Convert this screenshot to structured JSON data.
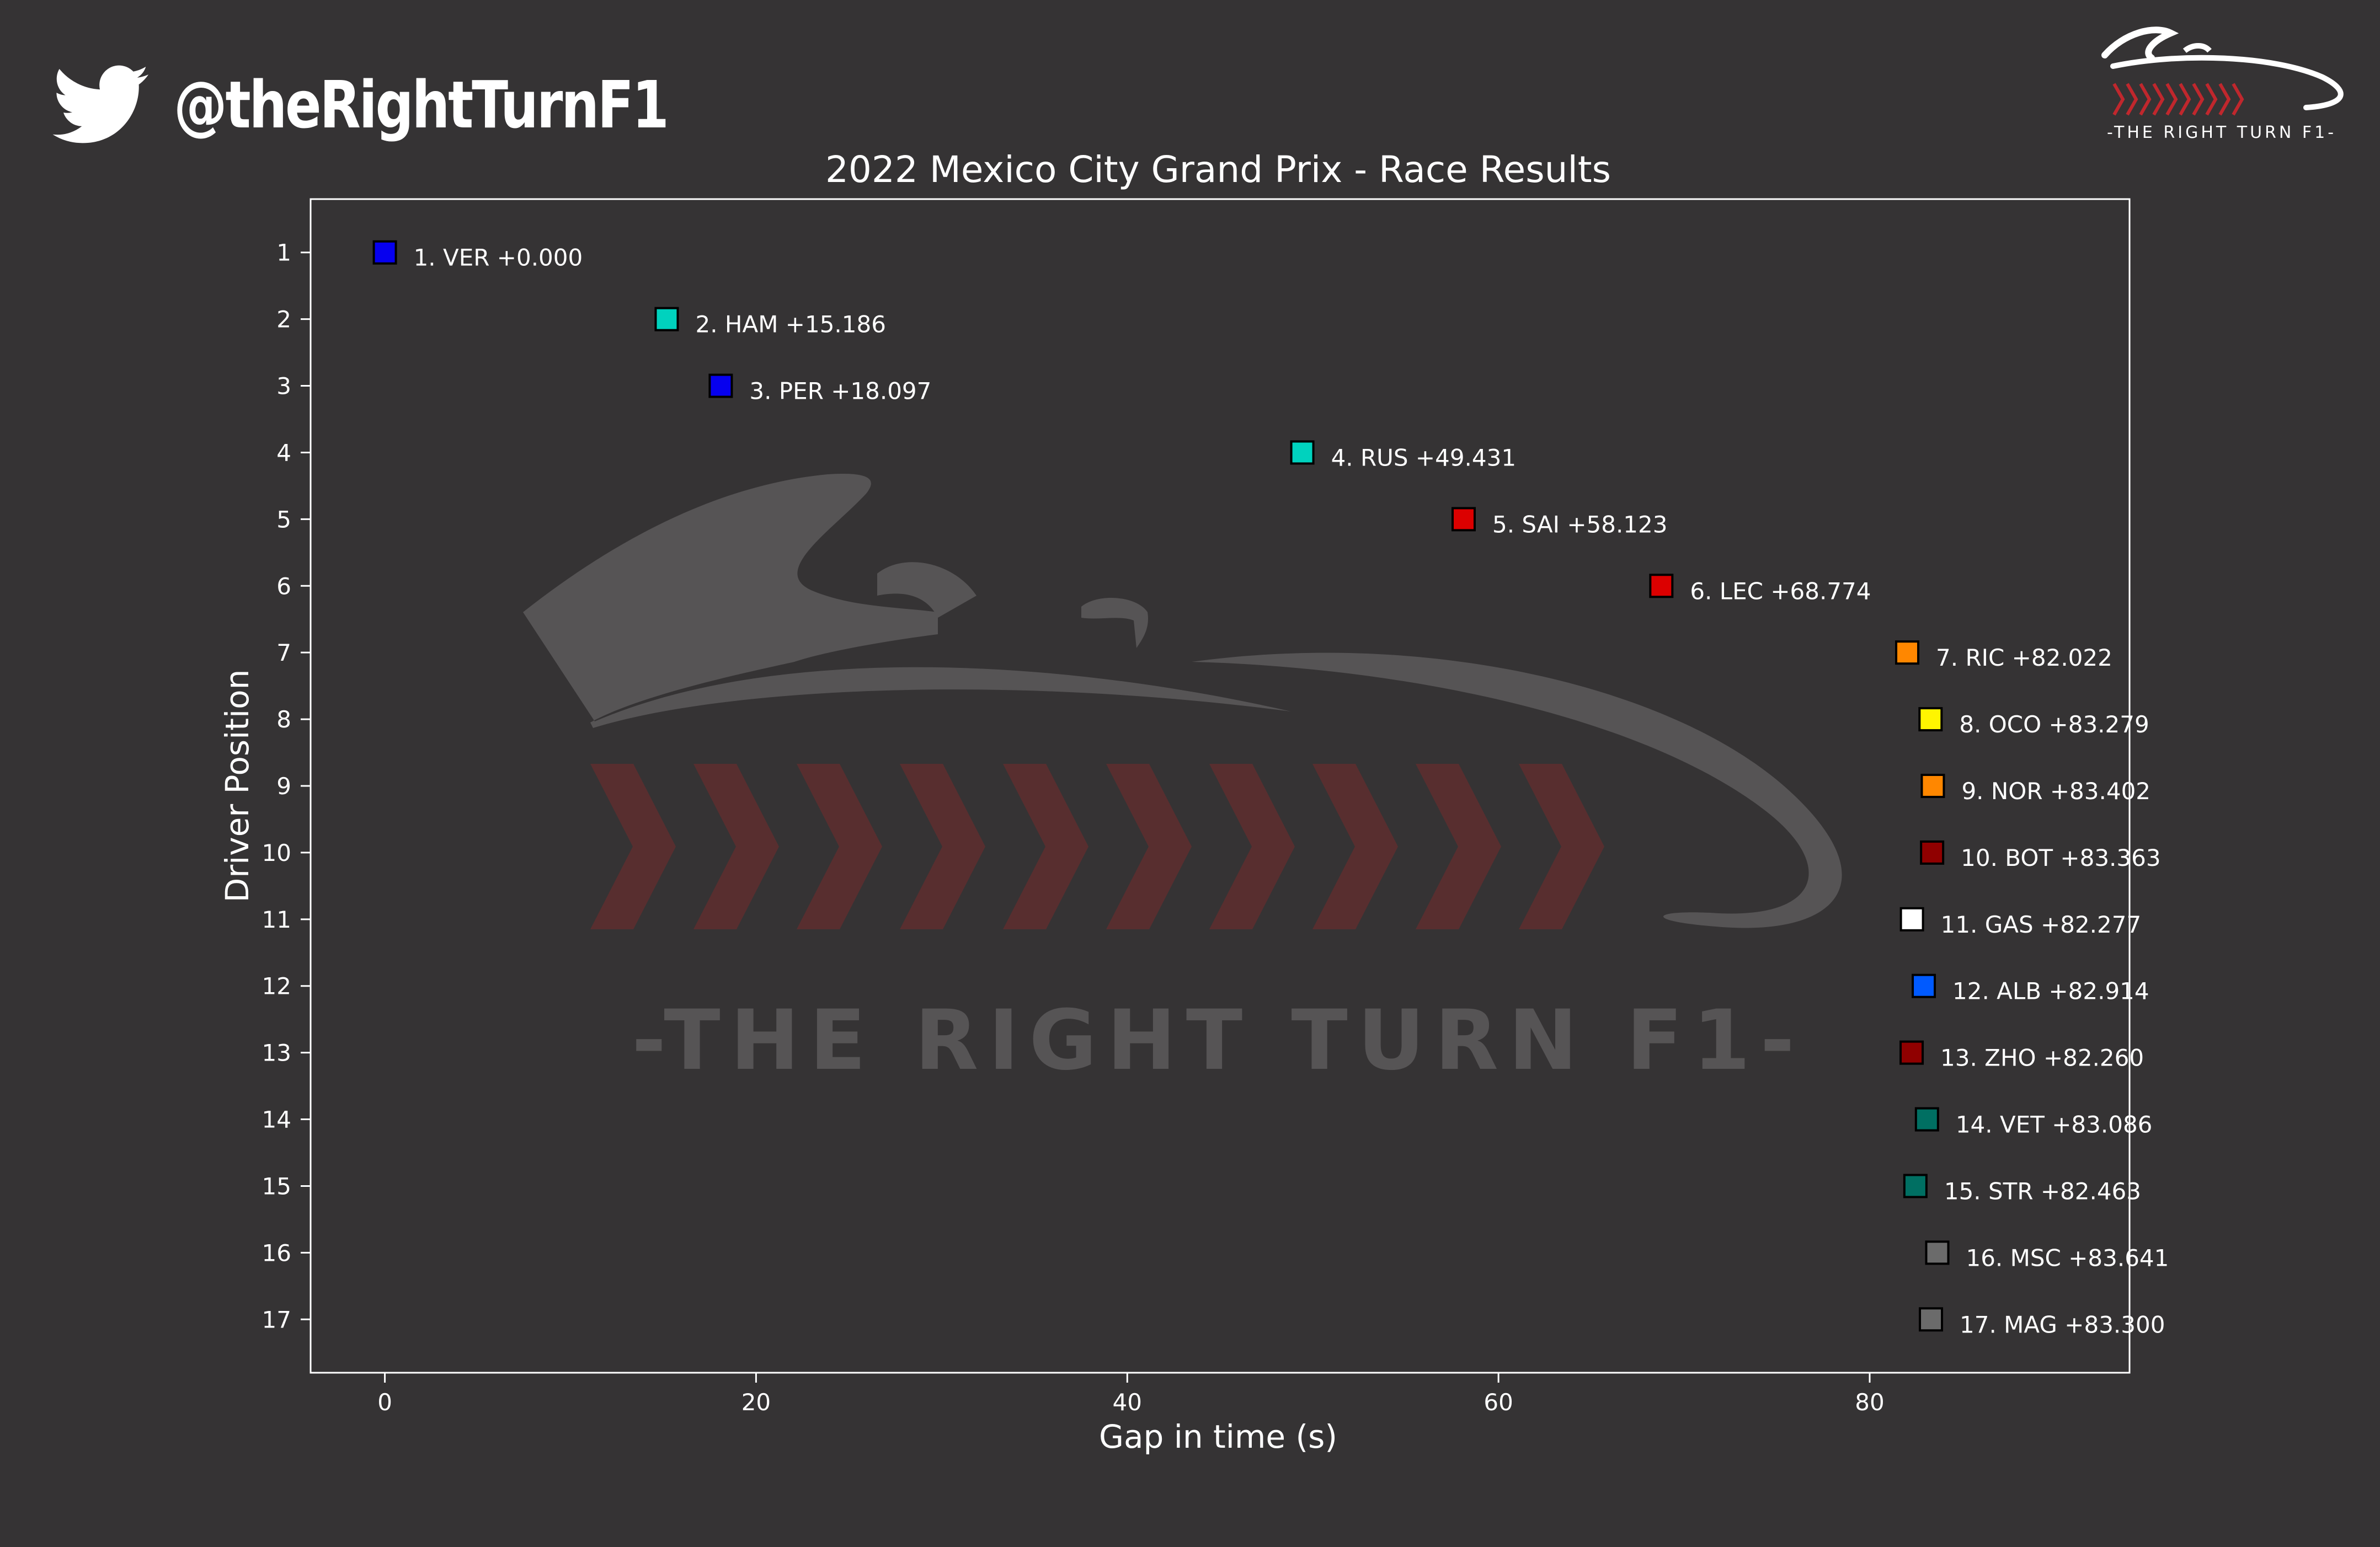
{
  "brand": {
    "handle": "@theRightTurnF1",
    "logo_text": "-THE RIGHT TURN F1-",
    "watermark_text": "-THE RIGHT TURN F1-",
    "twitter_icon": "twitter-bird-icon",
    "colors": {
      "background": "#353334",
      "text": "#ffffff",
      "watermark": "#5a5859",
      "chevron": "#5c2e2f",
      "logo_chevron": "#c0272d"
    }
  },
  "chart_data": {
    "type": "scatter",
    "title": "2022 Mexico City Grand Prix - Race Results",
    "xlabel": "Gap in time (s)",
    "ylabel": "Driver Position",
    "xlim": [
      -4,
      94
    ],
    "ylim": [
      17.8,
      0.2
    ],
    "y_inverted": true,
    "xticks": [
      0,
      20,
      40,
      60,
      80
    ],
    "yticks": [
      1,
      2,
      3,
      4,
      5,
      6,
      7,
      8,
      9,
      10,
      11,
      12,
      13,
      14,
      15,
      16,
      17
    ],
    "grid": false,
    "points": [
      {
        "pos": 1,
        "driver": "VER",
        "gap": 0.0,
        "label": "1. VER +0.000",
        "color": "#0600ef"
      },
      {
        "pos": 2,
        "driver": "HAM",
        "gap": 15.186,
        "label": "2. HAM +15.186",
        "color": "#00d2be"
      },
      {
        "pos": 3,
        "driver": "PER",
        "gap": 18.097,
        "label": "3. PER +18.097",
        "color": "#0600ef"
      },
      {
        "pos": 4,
        "driver": "RUS",
        "gap": 49.431,
        "label": "4. RUS +49.431",
        "color": "#00d2be"
      },
      {
        "pos": 5,
        "driver": "SAI",
        "gap": 58.123,
        "label": "5. SAI +58.123",
        "color": "#dc0000"
      },
      {
        "pos": 6,
        "driver": "LEC",
        "gap": 68.774,
        "label": "6. LEC +68.774",
        "color": "#dc0000"
      },
      {
        "pos": 7,
        "driver": "RIC",
        "gap": 82.022,
        "label": "7. RIC +82.022",
        "color": "#ff8700"
      },
      {
        "pos": 8,
        "driver": "OCO",
        "gap": 83.279,
        "label": "8. OCO +83.279",
        "color": "#fff500"
      },
      {
        "pos": 9,
        "driver": "NOR",
        "gap": 83.402,
        "label": "9. NOR +83.402",
        "color": "#ff8700"
      },
      {
        "pos": 10,
        "driver": "BOT",
        "gap": 83.363,
        "label": "10. BOT +83.363",
        "color": "#900000"
      },
      {
        "pos": 11,
        "driver": "GAS",
        "gap": 82.277,
        "label": "11. GAS +82.277",
        "color": "#ffffff"
      },
      {
        "pos": 12,
        "driver": "ALB",
        "gap": 82.914,
        "label": "12. ALB +82.914",
        "color": "#005aff"
      },
      {
        "pos": 13,
        "driver": "ZHO",
        "gap": 82.26,
        "label": "13. ZHO +82.260",
        "color": "#900000"
      },
      {
        "pos": 14,
        "driver": "VET",
        "gap": 83.086,
        "label": "14. VET +83.086",
        "color": "#006f62"
      },
      {
        "pos": 15,
        "driver": "STR",
        "gap": 82.463,
        "label": "15. STR +82.463",
        "color": "#006f62"
      },
      {
        "pos": 16,
        "driver": "MSC",
        "gap": 83.641,
        "label": "16. MSC +83.641",
        "color": "#6b6b6b"
      },
      {
        "pos": 17,
        "driver": "MAG",
        "gap": 83.3,
        "label": "17. MAG +83.300",
        "color": "#6b6b6b"
      }
    ]
  }
}
